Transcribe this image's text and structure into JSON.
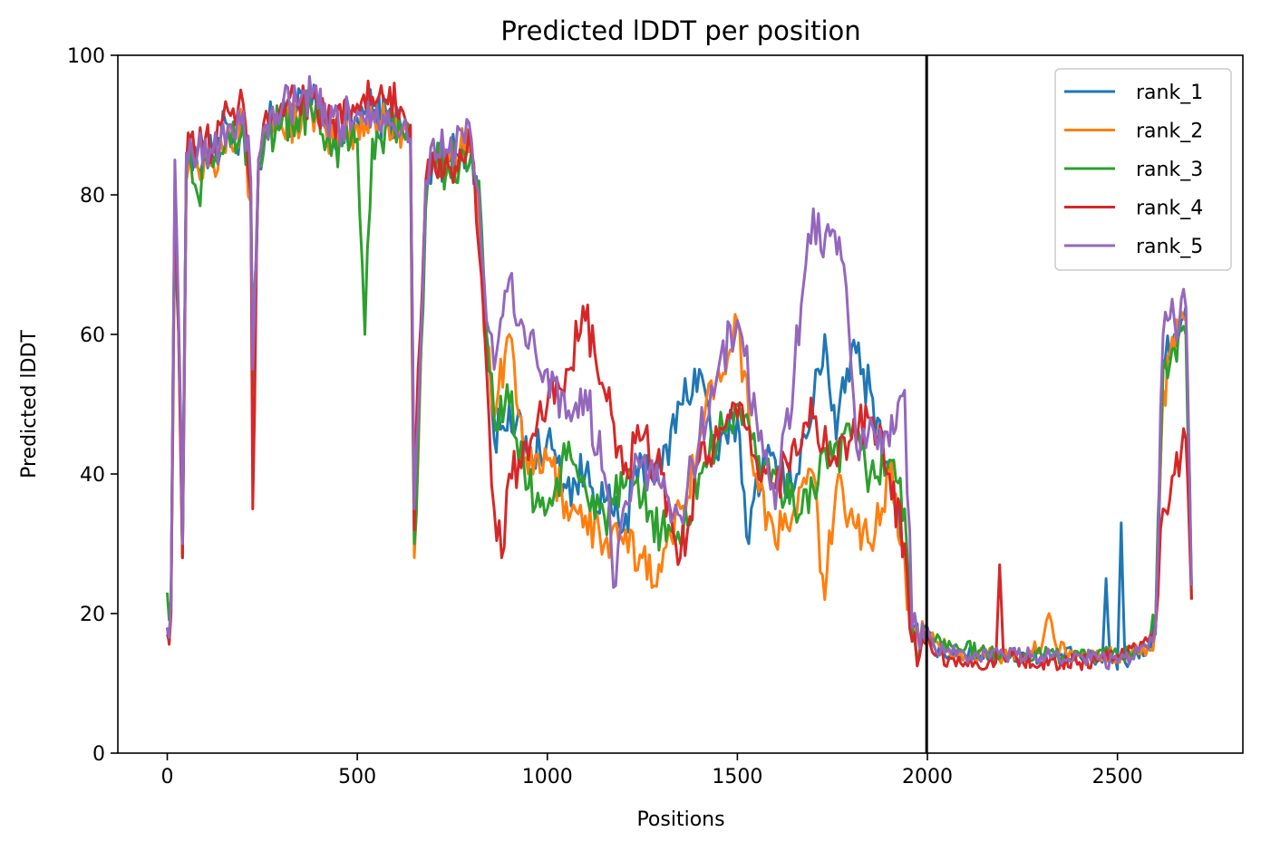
{
  "chart_data": {
    "type": "line",
    "title": "Predicted lDDT per position",
    "xlabel": "Positions",
    "ylabel": "Predicted lDDT",
    "xlim": [
      -130,
      2830
    ],
    "ylim": [
      0,
      100
    ],
    "xticks": [
      0,
      500,
      1000,
      1500,
      2000,
      2500
    ],
    "yticks": [
      0,
      20,
      40,
      60,
      80,
      100
    ],
    "grid": false,
    "legend_position": "top-right",
    "vline": 1998,
    "series": [
      {
        "name": "rank_1",
        "color": "#1f77b4",
        "x": [
          0,
          10,
          20,
          30,
          40,
          50,
          60,
          80,
          100,
          120,
          140,
          160,
          180,
          200,
          220,
          225,
          240,
          260,
          300,
          340,
          380,
          420,
          460,
          500,
          540,
          580,
          620,
          640,
          650,
          660,
          680,
          700,
          740,
          800,
          820,
          840,
          860,
          900,
          950,
          1000,
          1050,
          1100,
          1150,
          1200,
          1250,
          1300,
          1350,
          1400,
          1450,
          1500,
          1530,
          1550,
          1600,
          1650,
          1700,
          1730,
          1760,
          1800,
          1850,
          1900,
          1940,
          1960,
          1980,
          2000,
          2020,
          2100,
          2200,
          2300,
          2400,
          2460,
          2470,
          2480,
          2500,
          2510,
          2520,
          2540,
          2580,
          2600,
          2620,
          2650,
          2680,
          2695
        ],
        "y": [
          17,
          22,
          80,
          60,
          28,
          85,
          88,
          84,
          86,
          85,
          88,
          90,
          87,
          91,
          80,
          55,
          84,
          90,
          91,
          92,
          93,
          89,
          88,
          91,
          92,
          91,
          90,
          88,
          33,
          45,
          80,
          86,
          85,
          88,
          78,
          60,
          45,
          50,
          42,
          45,
          38,
          40,
          36,
          32,
          42,
          40,
          50,
          55,
          42,
          48,
          30,
          40,
          42,
          38,
          50,
          60,
          45,
          58,
          52,
          40,
          30,
          18,
          15,
          17,
          15,
          14,
          14,
          14,
          14,
          13,
          25,
          14,
          12,
          33,
          13,
          14,
          15,
          17,
          55,
          60,
          64,
          22
        ]
      },
      {
        "name": "rank_2",
        "color": "#ff7f0e",
        "x": [
          0,
          10,
          20,
          30,
          40,
          50,
          60,
          80,
          100,
          120,
          140,
          160,
          180,
          200,
          220,
          225,
          240,
          260,
          300,
          340,
          380,
          420,
          460,
          500,
          540,
          580,
          620,
          640,
          650,
          660,
          680,
          700,
          740,
          800,
          820,
          840,
          860,
          900,
          950,
          1000,
          1050,
          1100,
          1150,
          1200,
          1250,
          1300,
          1350,
          1400,
          1450,
          1500,
          1550,
          1600,
          1650,
          1700,
          1730,
          1760,
          1800,
          1850,
          1900,
          1940,
          1960,
          1980,
          2000,
          2020,
          2100,
          2200,
          2300,
          2320,
          2340,
          2400,
          2500,
          2580,
          2600,
          2620,
          2650,
          2680,
          2695
        ],
        "y": [
          18,
          22,
          78,
          60,
          28,
          82,
          86,
          84,
          86,
          85,
          88,
          90,
          87,
          90,
          79,
          52,
          84,
          90,
          90,
          91,
          92,
          88,
          88,
          90,
          91,
          91,
          89,
          87,
          28,
          42,
          80,
          86,
          85,
          88,
          76,
          58,
          48,
          60,
          40,
          42,
          36,
          34,
          30,
          30,
          28,
          26,
          35,
          45,
          55,
          62,
          40,
          30,
          35,
          40,
          22,
          38,
          35,
          30,
          40,
          28,
          16,
          15,
          17,
          16,
          14,
          14,
          15,
          20,
          15,
          14,
          14,
          15,
          18,
          52,
          58,
          62,
          22
        ]
      },
      {
        "name": "rank_3",
        "color": "#2ca02c",
        "x": [
          0,
          10,
          20,
          30,
          40,
          50,
          60,
          80,
          100,
          120,
          140,
          160,
          180,
          200,
          220,
          225,
          240,
          260,
          300,
          340,
          380,
          420,
          460,
          500,
          520,
          540,
          580,
          620,
          640,
          650,
          660,
          680,
          700,
          740,
          800,
          820,
          840,
          860,
          900,
          950,
          1000,
          1050,
          1100,
          1150,
          1200,
          1250,
          1300,
          1350,
          1400,
          1450,
          1500,
          1550,
          1600,
          1650,
          1700,
          1750,
          1800,
          1850,
          1900,
          1940,
          1960,
          1980,
          2000,
          2020,
          2100,
          2200,
          2300,
          2400,
          2500,
          2580,
          2600,
          2620,
          2650,
          2680,
          2695
        ],
        "y": [
          23,
          22,
          80,
          60,
          28,
          84,
          86,
          80,
          85,
          84,
          86,
          89,
          86,
          90,
          80,
          52,
          84,
          89,
          90,
          91,
          92,
          88,
          87,
          88,
          60,
          88,
          90,
          89,
          87,
          30,
          44,
          78,
          85,
          84,
          86,
          82,
          60,
          48,
          50,
          38,
          35,
          42,
          38,
          34,
          38,
          36,
          32,
          30,
          40,
          45,
          50,
          42,
          40,
          35,
          38,
          42,
          45,
          40,
          42,
          35,
          18,
          15,
          18,
          16,
          15,
          14,
          14,
          14,
          14,
          15,
          18,
          55,
          58,
          60,
          24
        ]
      },
      {
        "name": "rank_4",
        "color": "#d62728",
        "x": [
          0,
          10,
          20,
          30,
          40,
          50,
          60,
          80,
          100,
          120,
          140,
          160,
          180,
          200,
          220,
          225,
          240,
          260,
          300,
          340,
          380,
          420,
          460,
          500,
          540,
          580,
          620,
          640,
          650,
          660,
          680,
          700,
          740,
          800,
          820,
          840,
          860,
          880,
          900,
          950,
          1000,
          1050,
          1100,
          1150,
          1200,
          1250,
          1300,
          1350,
          1400,
          1450,
          1500,
          1550,
          1600,
          1650,
          1700,
          1750,
          1800,
          1850,
          1900,
          1940,
          1960,
          1980,
          2000,
          2020,
          2100,
          2180,
          2190,
          2200,
          2300,
          2400,
          2500,
          2580,
          2600,
          2620,
          2650,
          2680,
          2695
        ],
        "y": [
          18,
          20,
          82,
          60,
          28,
          84,
          88,
          86,
          88,
          87,
          90,
          92,
          90,
          93,
          80,
          35,
          85,
          92,
          93,
          94,
          94,
          90,
          90,
          93,
          94,
          93,
          92,
          90,
          32,
          55,
          82,
          86,
          84,
          86,
          72,
          55,
          35,
          28,
          40,
          42,
          50,
          55,
          62,
          52,
          40,
          45,
          40,
          28,
          42,
          45,
          48,
          42,
          38,
          45,
          48,
          42,
          45,
          48,
          40,
          30,
          16,
          14,
          18,
          14,
          13,
          13,
          27,
          14,
          13,
          13,
          14,
          16,
          18,
          35,
          40,
          45,
          22
        ]
      },
      {
        "name": "rank_5",
        "color": "#9467bd",
        "x": [
          0,
          10,
          20,
          30,
          40,
          50,
          60,
          80,
          100,
          120,
          140,
          160,
          180,
          200,
          220,
          225,
          240,
          260,
          300,
          340,
          380,
          420,
          460,
          500,
          540,
          580,
          620,
          640,
          650,
          660,
          680,
          700,
          740,
          800,
          820,
          840,
          860,
          900,
          950,
          1000,
          1050,
          1100,
          1150,
          1180,
          1200,
          1250,
          1300,
          1350,
          1400,
          1450,
          1500,
          1550,
          1600,
          1650,
          1680,
          1700,
          1720,
          1750,
          1780,
          1800,
          1820,
          1850,
          1900,
          1940,
          1960,
          1980,
          2000,
          2020,
          2100,
          2200,
          2300,
          2400,
          2500,
          2580,
          2600,
          2620,
          2650,
          2680,
          2695
        ],
        "y": [
          18,
          22,
          85,
          62,
          30,
          86,
          88,
          86,
          88,
          86,
          88,
          90,
          88,
          92,
          82,
          55,
          85,
          90,
          92,
          93,
          94,
          90,
          90,
          92,
          92,
          92,
          90,
          88,
          35,
          48,
          82,
          88,
          86,
          88,
          80,
          62,
          55,
          68,
          58,
          55,
          48,
          52,
          40,
          24,
          35,
          42,
          38,
          34,
          45,
          55,
          62,
          48,
          35,
          55,
          70,
          78,
          72,
          75,
          70,
          55,
          42,
          48,
          44,
          52,
          18,
          15,
          18,
          15,
          14,
          14,
          14,
          14,
          13,
          15,
          18,
          60,
          62,
          64,
          24
        ]
      }
    ]
  }
}
